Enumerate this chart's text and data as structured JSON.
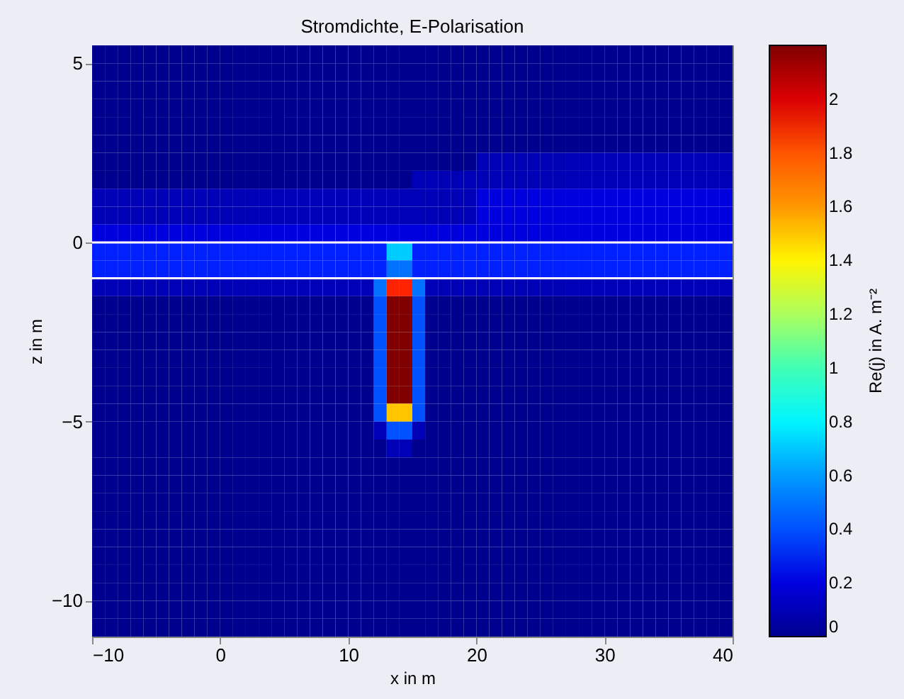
{
  "chart_data": {
    "type": "heatmap",
    "title": "Stromdichte, E-Polarisation",
    "xlabel": "x in m",
    "ylabel": "z in m",
    "clabel": "Re(j) in A. m⁻²",
    "xlim": [
      -10,
      40
    ],
    "ylim": [
      -11,
      5.5
    ],
    "xticks": [
      -10,
      0,
      10,
      20,
      30,
      40
    ],
    "yticks": [
      -10,
      -5,
      0,
      5
    ],
    "clim": [
      0,
      2.2
    ],
    "cticks": [
      0,
      0.2,
      0.4,
      0.6,
      0.8,
      1,
      1.2,
      1.4,
      1.6,
      1.8,
      2
    ],
    "ref_lines": [
      {
        "axis": "y",
        "value": 0,
        "color": "#ffffff"
      },
      {
        "axis": "y",
        "value": -1,
        "color": "#ffffff"
      }
    ],
    "cells": [
      [
        0,
        0,
        0,
        0,
        0,
        0,
        0,
        0,
        0,
        0,
        0,
        0,
        0,
        0,
        0,
        0,
        0,
        0,
        0,
        0,
        0,
        0,
        0,
        0,
        0,
        0,
        0,
        0,
        0,
        0,
        0,
        0,
        0,
        0,
        0,
        0,
        0,
        0,
        0,
        0,
        0,
        0,
        0,
        0,
        0,
        0,
        0,
        0,
        0,
        0
      ],
      [
        0,
        0,
        0,
        0,
        0,
        0,
        0,
        0,
        0,
        0,
        0,
        0,
        0,
        0,
        0,
        0,
        0,
        0,
        0,
        0,
        0,
        0,
        0,
        0,
        0,
        0,
        0,
        0,
        0,
        0,
        0,
        0,
        0,
        0,
        0,
        0,
        0,
        0,
        0,
        0,
        0,
        0,
        0,
        0,
        0,
        0,
        0,
        0,
        0,
        0
      ],
      [
        0,
        0,
        0,
        0,
        0,
        0,
        0,
        0,
        0,
        0,
        0,
        0,
        0,
        0,
        0,
        0,
        0,
        0,
        0,
        0,
        0,
        0,
        0,
        0,
        0,
        0,
        0,
        0,
        0,
        0,
        0,
        0,
        0,
        0,
        0,
        0,
        0,
        0,
        0,
        0,
        0,
        0,
        0,
        0,
        0,
        0,
        0,
        0,
        0,
        0
      ],
      [
        0,
        0,
        0,
        0,
        0,
        0,
        0,
        0,
        0,
        0,
        0,
        0,
        0,
        0,
        0,
        0,
        0,
        0,
        0,
        0,
        0,
        0,
        0,
        0,
        0,
        0,
        0,
        0,
        0,
        0,
        0,
        0,
        0,
        0,
        0,
        0,
        0,
        0,
        0,
        0,
        0,
        0,
        0,
        0,
        0,
        0,
        0,
        0,
        0,
        0
      ],
      [
        0,
        0,
        0,
        0,
        0,
        0,
        0,
        0,
        0,
        0,
        0,
        0,
        0,
        0,
        0,
        0,
        0,
        0,
        0,
        0,
        0,
        0,
        0,
        0,
        0,
        0,
        0,
        0,
        0,
        0,
        0,
        0,
        0,
        0,
        0,
        0,
        0,
        0,
        0,
        0,
        0,
        0,
        0,
        0,
        0,
        0,
        0,
        0,
        0,
        0
      ],
      [
        0,
        0,
        0,
        0,
        0,
        0,
        0,
        0,
        0,
        0,
        0,
        0,
        0,
        0,
        0,
        0,
        0,
        0,
        0,
        0,
        0,
        0,
        0,
        0,
        0,
        0,
        0,
        0,
        0,
        0,
        0,
        0,
        0,
        0,
        0,
        0,
        0,
        0,
        0,
        0,
        0,
        0,
        0,
        0,
        0,
        0,
        0,
        0,
        0,
        0
      ],
      [
        0,
        0,
        0,
        0,
        0,
        0,
        0,
        0,
        0,
        0,
        0,
        0,
        0,
        0,
        0,
        0,
        0,
        0,
        0,
        0,
        0,
        0,
        0,
        0,
        0,
        0,
        0,
        0,
        0,
        0,
        0.1,
        0.1,
        0.1,
        0.1,
        0.1,
        0.1,
        0.1,
        0.1,
        0.1,
        0.1,
        0.1,
        0.1,
        0.1,
        0.1,
        0.1,
        0.1,
        0.1,
        0.1,
        0.1,
        0.1
      ],
      [
        0,
        0,
        0,
        0,
        0,
        0,
        0,
        0,
        0,
        0,
        0,
        0,
        0,
        0,
        0,
        0,
        0,
        0,
        0,
        0,
        0,
        0,
        0,
        0,
        0,
        0.1,
        0.1,
        0.1,
        0.1,
        0.1,
        0.1,
        0.1,
        0.1,
        0.1,
        0.1,
        0.1,
        0.1,
        0.1,
        0.1,
        0.1,
        0.1,
        0.1,
        0.1,
        0.1,
        0.1,
        0.1,
        0.1,
        0.1,
        0.1,
        0.1
      ],
      [
        0.1,
        0.1,
        0.1,
        0.1,
        0.1,
        0.1,
        0.1,
        0.1,
        0.1,
        0.1,
        0.1,
        0.1,
        0.1,
        0.1,
        0.1,
        0.1,
        0.1,
        0.1,
        0.1,
        0.1,
        0.1,
        0.1,
        0.1,
        0.1,
        0.1,
        0.1,
        0.1,
        0.1,
        0.1,
        0.1,
        0.2,
        0.2,
        0.2,
        0.2,
        0.2,
        0.2,
        0.2,
        0.2,
        0.2,
        0.2,
        0.2,
        0.2,
        0.2,
        0.2,
        0.2,
        0.2,
        0.2,
        0.2,
        0.2,
        0.2
      ],
      [
        0.1,
        0.1,
        0.1,
        0.1,
        0.1,
        0.1,
        0.1,
        0.1,
        0.1,
        0.1,
        0.1,
        0.1,
        0.1,
        0.1,
        0.1,
        0.1,
        0.1,
        0.1,
        0.1,
        0.1,
        0.1,
        0.1,
        0.1,
        0.1,
        0.1,
        0.1,
        0.1,
        0.1,
        0.1,
        0.1,
        0.2,
        0.2,
        0.2,
        0.2,
        0.2,
        0.2,
        0.2,
        0.2,
        0.2,
        0.2,
        0.2,
        0.2,
        0.2,
        0.2,
        0.2,
        0.2,
        0.2,
        0.2,
        0.2,
        0.2
      ],
      [
        0.2,
        0.2,
        0.2,
        0.2,
        0.2,
        0.2,
        0.2,
        0.2,
        0.2,
        0.2,
        0.2,
        0.2,
        0.2,
        0.2,
        0.2,
        0.2,
        0.2,
        0.2,
        0.2,
        0.2,
        0.2,
        0.2,
        0.2,
        0.2,
        0.2,
        0.2,
        0.2,
        0.2,
        0.2,
        0.2,
        0.2,
        0.2,
        0.2,
        0.2,
        0.2,
        0.2,
        0.2,
        0.2,
        0.2,
        0.2,
        0.2,
        0.2,
        0.2,
        0.2,
        0.2,
        0.2,
        0.2,
        0.2,
        0.2,
        0.2
      ],
      [
        0.3,
        0.3,
        0.3,
        0.3,
        0.3,
        0.3,
        0.3,
        0.3,
        0.3,
        0.3,
        0.3,
        0.3,
        0.3,
        0.3,
        0.3,
        0.3,
        0.3,
        0.3,
        0.3,
        0.3,
        0.3,
        0.3,
        0.3,
        0.7,
        0.7,
        0.3,
        0.3,
        0.3,
        0.3,
        0.3,
        0.3,
        0.3,
        0.3,
        0.3,
        0.3,
        0.3,
        0.3,
        0.3,
        0.3,
        0.3,
        0.3,
        0.3,
        0.3,
        0.3,
        0.3,
        0.3,
        0.3,
        0.3,
        0.3,
        0.3
      ],
      [
        0.3,
        0.3,
        0.3,
        0.3,
        0.3,
        0.3,
        0.3,
        0.3,
        0.3,
        0.3,
        0.3,
        0.3,
        0.3,
        0.3,
        0.3,
        0.3,
        0.3,
        0.3,
        0.3,
        0.3,
        0.3,
        0.3,
        0.3,
        0.5,
        0.5,
        0.3,
        0.3,
        0.3,
        0.3,
        0.3,
        0.3,
        0.3,
        0.3,
        0.3,
        0.3,
        0.3,
        0.3,
        0.3,
        0.3,
        0.3,
        0.3,
        0.3,
        0.3,
        0.3,
        0.3,
        0.3,
        0.3,
        0.3,
        0.3,
        0.3
      ],
      [
        0.1,
        0.1,
        0.1,
        0.1,
        0.1,
        0.1,
        0.1,
        0.1,
        0.1,
        0.1,
        0.1,
        0.1,
        0.1,
        0.1,
        0.1,
        0.1,
        0.1,
        0.1,
        0.1,
        0.1,
        0.1,
        0.1,
        0.5,
        1.9,
        1.9,
        0.5,
        0.1,
        0.1,
        0.1,
        0.1,
        0.1,
        0.1,
        0.1,
        0.1,
        0.1,
        0.1,
        0.1,
        0.1,
        0.1,
        0.1,
        0.1,
        0.1,
        0.1,
        0.1,
        0.1,
        0.1,
        0.1,
        0.1,
        0.1,
        0.1
      ],
      [
        0,
        0,
        0,
        0,
        0,
        0,
        0,
        0,
        0,
        0,
        0,
        0,
        0,
        0,
        0,
        0,
        0,
        0,
        0,
        0,
        0,
        0,
        0.4,
        2.2,
        2.2,
        0.4,
        0,
        0,
        0,
        0,
        0,
        0,
        0,
        0,
        0,
        0,
        0,
        0,
        0,
        0,
        0,
        0,
        0,
        0,
        0,
        0,
        0,
        0,
        0,
        0
      ],
      [
        0,
        0,
        0,
        0,
        0,
        0,
        0,
        0,
        0,
        0,
        0,
        0,
        0,
        0,
        0,
        0,
        0,
        0,
        0,
        0,
        0,
        0,
        0.4,
        2.2,
        2.2,
        0.4,
        0,
        0,
        0,
        0,
        0,
        0,
        0,
        0,
        0,
        0,
        0,
        0,
        0,
        0,
        0,
        0,
        0,
        0,
        0,
        0,
        0,
        0,
        0,
        0
      ],
      [
        0,
        0,
        0,
        0,
        0,
        0,
        0,
        0,
        0,
        0,
        0,
        0,
        0,
        0,
        0,
        0,
        0,
        0,
        0,
        0,
        0,
        0,
        0.4,
        2.2,
        2.2,
        0.4,
        0,
        0,
        0,
        0,
        0,
        0,
        0,
        0,
        0,
        0,
        0,
        0,
        0,
        0,
        0,
        0,
        0,
        0,
        0,
        0,
        0,
        0,
        0,
        0
      ],
      [
        0,
        0,
        0,
        0,
        0,
        0,
        0,
        0,
        0,
        0,
        0,
        0,
        0,
        0,
        0,
        0,
        0,
        0,
        0,
        0,
        0,
        0,
        0.4,
        2.2,
        2.2,
        0.4,
        0,
        0,
        0,
        0,
        0,
        0,
        0,
        0,
        0,
        0,
        0,
        0,
        0,
        0,
        0,
        0,
        0,
        0,
        0,
        0,
        0,
        0,
        0,
        0
      ],
      [
        0,
        0,
        0,
        0,
        0,
        0,
        0,
        0,
        0,
        0,
        0,
        0,
        0,
        0,
        0,
        0,
        0,
        0,
        0,
        0,
        0,
        0,
        0.4,
        2.2,
        2.2,
        0.4,
        0,
        0,
        0,
        0,
        0,
        0,
        0,
        0,
        0,
        0,
        0,
        0,
        0,
        0,
        0,
        0,
        0,
        0,
        0,
        0,
        0,
        0,
        0,
        0
      ],
      [
        0,
        0,
        0,
        0,
        0,
        0,
        0,
        0,
        0,
        0,
        0,
        0,
        0,
        0,
        0,
        0,
        0,
        0,
        0,
        0,
        0,
        0,
        0.4,
        2.2,
        2.2,
        0.4,
        0,
        0,
        0,
        0,
        0,
        0,
        0,
        0,
        0,
        0,
        0,
        0,
        0,
        0,
        0,
        0,
        0,
        0,
        0,
        0,
        0,
        0,
        0,
        0
      ],
      [
        0,
        0,
        0,
        0,
        0,
        0,
        0,
        0,
        0,
        0,
        0,
        0,
        0,
        0,
        0,
        0,
        0,
        0,
        0,
        0,
        0,
        0,
        0.4,
        1.5,
        1.5,
        0.4,
        0,
        0,
        0,
        0,
        0,
        0,
        0,
        0,
        0,
        0,
        0,
        0,
        0,
        0,
        0,
        0,
        0,
        0,
        0,
        0,
        0,
        0,
        0,
        0
      ],
      [
        0,
        0,
        0,
        0,
        0,
        0,
        0,
        0,
        0,
        0,
        0,
        0,
        0,
        0,
        0,
        0,
        0,
        0,
        0,
        0,
        0,
        0,
        0.1,
        0.4,
        0.4,
        0.1,
        0,
        0,
        0,
        0,
        0,
        0,
        0,
        0,
        0,
        0,
        0,
        0,
        0,
        0,
        0,
        0,
        0,
        0,
        0,
        0,
        0,
        0,
        0,
        0
      ],
      [
        0,
        0,
        0,
        0,
        0,
        0,
        0,
        0,
        0,
        0,
        0,
        0,
        0,
        0,
        0,
        0,
        0,
        0,
        0,
        0,
        0,
        0,
        0,
        0.1,
        0.1,
        0,
        0,
        0,
        0,
        0,
        0,
        0,
        0,
        0,
        0,
        0,
        0,
        0,
        0,
        0,
        0,
        0,
        0,
        0,
        0,
        0,
        0,
        0,
        0,
        0
      ],
      [
        0,
        0,
        0,
        0,
        0,
        0,
        0,
        0,
        0,
        0,
        0,
        0,
        0,
        0,
        0,
        0,
        0,
        0,
        0,
        0,
        0,
        0,
        0,
        0,
        0,
        0,
        0,
        0,
        0,
        0,
        0,
        0,
        0,
        0,
        0,
        0,
        0,
        0,
        0,
        0,
        0,
        0,
        0,
        0,
        0,
        0,
        0,
        0,
        0,
        0
      ],
      [
        0,
        0,
        0,
        0,
        0,
        0,
        0,
        0,
        0,
        0,
        0,
        0,
        0,
        0,
        0,
        0,
        0,
        0,
        0,
        0,
        0,
        0,
        0,
        0,
        0,
        0,
        0,
        0,
        0,
        0,
        0,
        0,
        0,
        0,
        0,
        0,
        0,
        0,
        0,
        0,
        0,
        0,
        0,
        0,
        0,
        0,
        0,
        0,
        0,
        0
      ],
      [
        0,
        0,
        0,
        0,
        0,
        0,
        0,
        0,
        0,
        0,
        0,
        0,
        0,
        0,
        0,
        0,
        0,
        0,
        0,
        0,
        0,
        0,
        0,
        0,
        0,
        0,
        0,
        0,
        0,
        0,
        0,
        0,
        0,
        0,
        0,
        0,
        0,
        0,
        0,
        0,
        0,
        0,
        0,
        0,
        0,
        0,
        0,
        0,
        0,
        0
      ],
      [
        0,
        0,
        0,
        0,
        0,
        0,
        0,
        0,
        0,
        0,
        0,
        0,
        0,
        0,
        0,
        0,
        0,
        0,
        0,
        0,
        0,
        0,
        0,
        0,
        0,
        0,
        0,
        0,
        0,
        0,
        0,
        0,
        0,
        0,
        0,
        0,
        0,
        0,
        0,
        0,
        0,
        0,
        0,
        0,
        0,
        0,
        0,
        0,
        0,
        0
      ],
      [
        0,
        0,
        0,
        0,
        0,
        0,
        0,
        0,
        0,
        0,
        0,
        0,
        0,
        0,
        0,
        0,
        0,
        0,
        0,
        0,
        0,
        0,
        0,
        0,
        0,
        0,
        0,
        0,
        0,
        0,
        0,
        0,
        0,
        0,
        0,
        0,
        0,
        0,
        0,
        0,
        0,
        0,
        0,
        0,
        0,
        0,
        0,
        0,
        0,
        0
      ],
      [
        0,
        0,
        0,
        0,
        0,
        0,
        0,
        0,
        0,
        0,
        0,
        0,
        0,
        0,
        0,
        0,
        0,
        0,
        0,
        0,
        0,
        0,
        0,
        0,
        0,
        0,
        0,
        0,
        0,
        0,
        0,
        0,
        0,
        0,
        0,
        0,
        0,
        0,
        0,
        0,
        0,
        0,
        0,
        0,
        0,
        0,
        0,
        0,
        0,
        0
      ],
      [
        0,
        0,
        0,
        0,
        0,
        0,
        0,
        0,
        0,
        0,
        0,
        0,
        0,
        0,
        0,
        0,
        0,
        0,
        0,
        0,
        0,
        0,
        0,
        0,
        0,
        0,
        0,
        0,
        0,
        0,
        0,
        0,
        0,
        0,
        0,
        0,
        0,
        0,
        0,
        0,
        0,
        0,
        0,
        0,
        0,
        0,
        0,
        0,
        0,
        0
      ],
      [
        0,
        0,
        0,
        0,
        0,
        0,
        0,
        0,
        0,
        0,
        0,
        0,
        0,
        0,
        0,
        0,
        0,
        0,
        0,
        0,
        0,
        0,
        0,
        0,
        0,
        0,
        0,
        0,
        0,
        0,
        0,
        0,
        0,
        0,
        0,
        0,
        0,
        0,
        0,
        0,
        0,
        0,
        0,
        0,
        0,
        0,
        0,
        0,
        0,
        0
      ],
      [
        0,
        0,
        0,
        0,
        0,
        0,
        0,
        0,
        0,
        0,
        0,
        0,
        0,
        0,
        0,
        0,
        0,
        0,
        0,
        0,
        0,
        0,
        0,
        0,
        0,
        0,
        0,
        0,
        0,
        0,
        0,
        0,
        0,
        0,
        0,
        0,
        0,
        0,
        0,
        0,
        0,
        0,
        0,
        0,
        0,
        0,
        0,
        0,
        0,
        0
      ],
      [
        0,
        0,
        0,
        0,
        0,
        0,
        0,
        0,
        0,
        0,
        0,
        0,
        0,
        0,
        0,
        0,
        0,
        0,
        0,
        0,
        0,
        0,
        0,
        0,
        0,
        0,
        0,
        0,
        0,
        0,
        0,
        0,
        0,
        0,
        0,
        0,
        0,
        0,
        0,
        0,
        0,
        0,
        0,
        0,
        0,
        0,
        0,
        0,
        0,
        0
      ]
    ]
  }
}
